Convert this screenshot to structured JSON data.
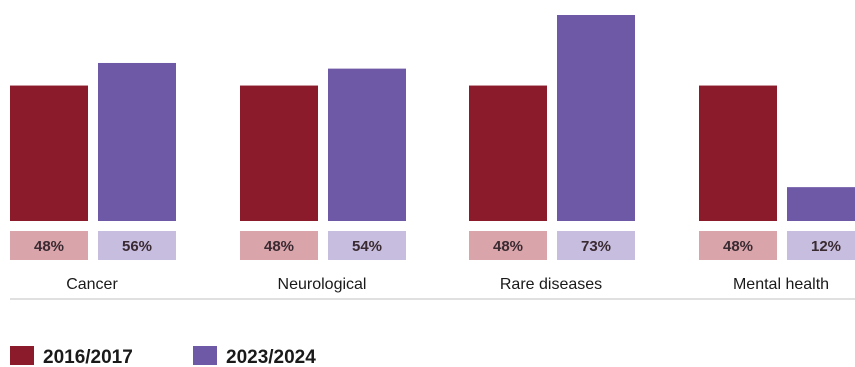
{
  "chart_data": {
    "type": "bar",
    "categories": [
      "Cancer",
      "Neurological",
      "Rare diseases",
      "Mental health"
    ],
    "series": [
      {
        "name": "2016/2017",
        "values": [
          48,
          48,
          48,
          48
        ],
        "value_labels": [
          "48%",
          "48%",
          "48%",
          "48%"
        ]
      },
      {
        "name": "2023/2024",
        "values": [
          56,
          54,
          73,
          12
        ],
        "value_labels": [
          "56%",
          "54%",
          "73%",
          "12%"
        ]
      }
    ],
    "colors": {
      "series": [
        "#8b1a2b",
        "#6e59a6"
      ],
      "label_boxes": [
        "#d9a4aa",
        "#c7bedf"
      ]
    },
    "ylim": [
      0,
      73
    ],
    "legend_position": "bottom-left",
    "grid": false
  }
}
